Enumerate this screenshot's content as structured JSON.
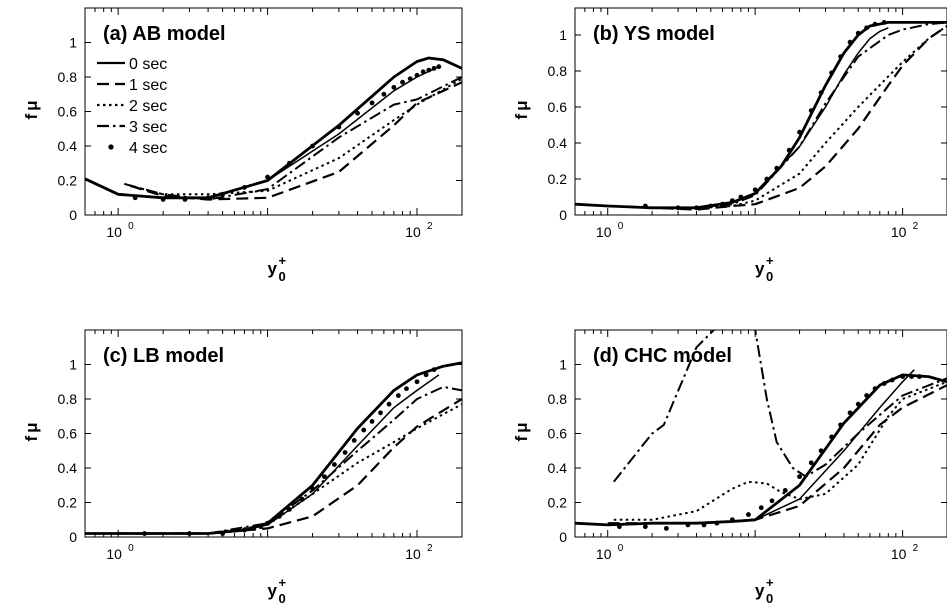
{
  "chart_data": [
    {
      "type": "line",
      "title": "(a) AB model",
      "xlabel": "y",
      "xlabel_sup": "+",
      "xlabel_sub": "0",
      "ylabel": "f",
      "ylabel_sub": "μ",
      "xscale": "log",
      "xlim": [
        0.6,
        200
      ],
      "ylim": [
        0,
        1.2
      ],
      "xticks": [
        1,
        100
      ],
      "xtick_labels": [
        "10",
        "10"
      ],
      "xtick_exps": [
        "0",
        "2"
      ],
      "yticks": [
        0,
        0.2,
        0.4,
        0.6,
        0.8,
        1
      ],
      "ytick_labels": [
        "0",
        "0.2",
        "0.4",
        "0.6",
        "0.8",
        "1"
      ],
      "legend": {
        "placement": "top-left"
      },
      "series": [
        {
          "name": "0 sec",
          "style": "solid-thick",
          "x": [
            0.6,
            1.0,
            2.0,
            4.0,
            10,
            30,
            70,
            100,
            120,
            150,
            200
          ],
          "y": [
            0.21,
            0.12,
            0.1,
            0.1,
            0.2,
            0.52,
            0.8,
            0.89,
            0.91,
            0.9,
            0.85
          ]
        },
        {
          "name": "1 sec",
          "style": "dash",
          "x": [
            1.2,
            2.0,
            4.0,
            10,
            30,
            70,
            100,
            200
          ],
          "y": [
            0.17,
            0.11,
            0.09,
            0.1,
            0.25,
            0.52,
            0.65,
            0.77
          ]
        },
        {
          "name": "2 sec",
          "style": "dot",
          "x": [
            1.2,
            2.0,
            4.0,
            10,
            30,
            70,
            100,
            200
          ],
          "y": [
            0.17,
            0.12,
            0.12,
            0.14,
            0.33,
            0.55,
            0.64,
            0.79
          ]
        },
        {
          "name": "3 sec",
          "style": "dashdot",
          "x": [
            1.1,
            2.0,
            4.0,
            10,
            30,
            70,
            100,
            200
          ],
          "y": [
            0.18,
            0.12,
            0.09,
            0.15,
            0.45,
            0.64,
            0.67,
            0.8
          ]
        },
        {
          "name": "4 sec",
          "style": "marker",
          "x": [
            1.3,
            2.0,
            2.8,
            4.0,
            5.0,
            7.0,
            10,
            14,
            20,
            30,
            40,
            50,
            60,
            70,
            80,
            90,
            100,
            110,
            120,
            130,
            140
          ],
          "y": [
            0.1,
            0.09,
            0.09,
            0.1,
            0.12,
            0.16,
            0.22,
            0.3,
            0.4,
            0.51,
            0.59,
            0.65,
            0.7,
            0.74,
            0.77,
            0.79,
            0.81,
            0.83,
            0.84,
            0.85,
            0.86
          ]
        },
        {
          "name": "",
          "style": "solid",
          "x": [
            10,
            30,
            70,
            100,
            140
          ],
          "y": [
            0.2,
            0.47,
            0.72,
            0.8,
            0.86
          ]
        }
      ]
    },
    {
      "type": "line",
      "title": "(b) YS model",
      "xlabel": "y",
      "xlabel_sup": "+",
      "xlabel_sub": "0",
      "ylabel": "f",
      "ylabel_sub": "μ",
      "xscale": "log",
      "xlim": [
        0.6,
        200
      ],
      "ylim": [
        0,
        1.15
      ],
      "xticks": [
        1,
        100
      ],
      "xtick_labels": [
        "10",
        "10"
      ],
      "xtick_exps": [
        "0",
        "2"
      ],
      "yticks": [
        0,
        0.2,
        0.4,
        0.6,
        0.8,
        1
      ],
      "ytick_labels": [
        "0",
        "0.2",
        "0.4",
        "0.6",
        "0.8",
        "1"
      ],
      "series": [
        {
          "name": "0 sec",
          "style": "solid-thick",
          "x": [
            0.6,
            1.0,
            2.0,
            4.0,
            7.0,
            10,
            15,
            20,
            30,
            40,
            50,
            60,
            80,
            100,
            200
          ],
          "y": [
            0.06,
            0.05,
            0.04,
            0.04,
            0.07,
            0.12,
            0.27,
            0.43,
            0.72,
            0.9,
            1.0,
            1.05,
            1.07,
            1.07,
            1.07
          ]
        },
        {
          "name": "1 sec",
          "style": "dash",
          "x": [
            1.0,
            2.0,
            4.0,
            7.0,
            10,
            20,
            30,
            50,
            80,
            100,
            150,
            200
          ],
          "y": [
            0.05,
            0.04,
            0.03,
            0.05,
            0.06,
            0.15,
            0.27,
            0.48,
            0.72,
            0.83,
            0.98,
            1.05
          ]
        },
        {
          "name": "2 sec",
          "style": "dot",
          "x": [
            1.0,
            2.0,
            4.0,
            7.0,
            10,
            20,
            30,
            50,
            80,
            100,
            150,
            200
          ],
          "y": [
            0.05,
            0.04,
            0.04,
            0.05,
            0.08,
            0.23,
            0.4,
            0.6,
            0.77,
            0.85,
            0.98,
            1.05
          ]
        },
        {
          "name": "3 sec",
          "style": "dashdot",
          "x": [
            1.0,
            2.0,
            4.0,
            7.0,
            10,
            20,
            30,
            50,
            80,
            100,
            150,
            200
          ],
          "y": [
            0.05,
            0.04,
            0.04,
            0.06,
            0.11,
            0.38,
            0.62,
            0.88,
            1.0,
            1.03,
            1.06,
            1.07
          ]
        },
        {
          "name": "4 sec",
          "style": "marker",
          "x": [
            1.8,
            3.0,
            4.0,
            5.0,
            6.0,
            7.0,
            8.0,
            10,
            12,
            14,
            17,
            20,
            24,
            28,
            33,
            38,
            44,
            50,
            57,
            65,
            75
          ],
          "y": [
            0.05,
            0.04,
            0.04,
            0.05,
            0.06,
            0.08,
            0.1,
            0.14,
            0.2,
            0.26,
            0.36,
            0.46,
            0.58,
            0.68,
            0.79,
            0.88,
            0.96,
            1.01,
            1.04,
            1.06,
            1.07
          ]
        },
        {
          "name": "",
          "style": "solid",
          "x": [
            4.0,
            7.0,
            10,
            20,
            30,
            40,
            50,
            60,
            70,
            80
          ],
          "y": [
            0.04,
            0.07,
            0.12,
            0.38,
            0.6,
            0.78,
            0.9,
            0.98,
            1.02,
            1.04
          ]
        }
      ]
    },
    {
      "type": "line",
      "title": "(c) LB model",
      "xlabel": "y",
      "xlabel_sup": "+",
      "xlabel_sub": "0",
      "ylabel": "f",
      "ylabel_sub": "μ",
      "xscale": "log",
      "xlim": [
        0.6,
        200
      ],
      "ylim": [
        0,
        1.2
      ],
      "xticks": [
        1,
        100
      ],
      "xtick_labels": [
        "10",
        "10"
      ],
      "xtick_exps": [
        "0",
        "2"
      ],
      "yticks": [
        0,
        0.2,
        0.4,
        0.6,
        0.8,
        1
      ],
      "ytick_labels": [
        "0",
        "0.2",
        "0.4",
        "0.6",
        "0.8",
        "1"
      ],
      "series": [
        {
          "name": "0 sec",
          "style": "solid-thick",
          "x": [
            0.6,
            1.0,
            2.0,
            4.0,
            7.0,
            10,
            20,
            40,
            70,
            100,
            150,
            200
          ],
          "y": [
            0.02,
            0.02,
            0.02,
            0.02,
            0.04,
            0.08,
            0.3,
            0.63,
            0.85,
            0.94,
            0.99,
            1.01
          ]
        },
        {
          "name": "1 sec",
          "style": "dash",
          "x": [
            1.0,
            4.0,
            10,
            20,
            40,
            70,
            100,
            200
          ],
          "y": [
            0.02,
            0.02,
            0.05,
            0.12,
            0.3,
            0.52,
            0.64,
            0.8
          ]
        },
        {
          "name": "2 sec",
          "style": "dot",
          "x": [
            1.0,
            4.0,
            10,
            20,
            40,
            70,
            100,
            200
          ],
          "y": [
            0.02,
            0.02,
            0.07,
            0.25,
            0.43,
            0.55,
            0.63,
            0.77
          ]
        },
        {
          "name": "3 sec",
          "style": "dashdot",
          "x": [
            1.0,
            4.0,
            10,
            20,
            40,
            70,
            100,
            150,
            200
          ],
          "y": [
            0.02,
            0.02,
            0.08,
            0.27,
            0.5,
            0.68,
            0.8,
            0.87,
            0.85
          ]
        },
        {
          "name": "4 sec",
          "style": "marker",
          "x": [
            1.5,
            3.0,
            5.0,
            7.0,
            8.0,
            9.0,
            10,
            12,
            14,
            17,
            20,
            24,
            28,
            33,
            38,
            44,
            50,
            57,
            65,
            75,
            85,
            100,
            115,
            130
          ],
          "y": [
            0.02,
            0.02,
            0.02,
            0.04,
            0.05,
            0.06,
            0.08,
            0.12,
            0.16,
            0.22,
            0.28,
            0.35,
            0.42,
            0.49,
            0.56,
            0.62,
            0.67,
            0.72,
            0.77,
            0.82,
            0.86,
            0.9,
            0.94,
            0.97
          ]
        },
        {
          "name": "",
          "style": "solid",
          "x": [
            7.0,
            10,
            20,
            40,
            70,
            100,
            140
          ],
          "y": [
            0.04,
            0.07,
            0.25,
            0.53,
            0.75,
            0.85,
            0.94
          ]
        }
      ]
    },
    {
      "type": "line",
      "title": "(d) CHC model",
      "xlabel": "y",
      "xlabel_sup": "+",
      "xlabel_sub": "0",
      "ylabel": "f",
      "ylabel_sub": "μ",
      "xscale": "log",
      "xlim": [
        0.6,
        200
      ],
      "ylim": [
        0,
        1.2
      ],
      "xticks": [
        1,
        100
      ],
      "xtick_labels": [
        "10",
        "10"
      ],
      "xtick_exps": [
        "0",
        "2"
      ],
      "yticks": [
        0,
        0.2,
        0.4,
        0.6,
        0.8,
        1
      ],
      "ytick_labels": [
        "0",
        "0.2",
        "0.4",
        "0.6",
        "0.8",
        "1"
      ],
      "series": [
        {
          "name": "0 sec",
          "style": "solid-thick",
          "x": [
            0.6,
            1.0,
            2.0,
            4.0,
            7.0,
            10,
            20,
            40,
            70,
            100,
            150,
            200
          ],
          "y": [
            0.08,
            0.07,
            0.08,
            0.08,
            0.09,
            0.1,
            0.3,
            0.66,
            0.88,
            0.94,
            0.93,
            0.9
          ]
        },
        {
          "name": "1 sec",
          "style": "dash",
          "x": [
            1.0,
            4.0,
            10,
            20,
            40,
            70,
            100,
            200
          ],
          "y": [
            0.08,
            0.08,
            0.1,
            0.18,
            0.4,
            0.65,
            0.75,
            0.88
          ]
        },
        {
          "name": "2 sec",
          "style": "dot",
          "x": [
            1.1,
            2.0,
            4.0,
            7.0,
            9.0,
            12,
            15,
            20,
            30,
            50,
            80,
            100,
            200
          ],
          "y": [
            0.1,
            0.1,
            0.15,
            0.28,
            0.32,
            0.31,
            0.26,
            0.22,
            0.25,
            0.42,
            0.7,
            0.8,
            0.9
          ]
        },
        {
          "name": "3 sec",
          "style": "dashdot",
          "x": [
            1.1,
            2.0,
            2.4,
            4.0,
            6.0,
            8.0,
            10,
            12,
            14,
            18,
            22,
            30,
            50,
            80,
            100,
            200
          ],
          "y": [
            0.32,
            0.6,
            0.65,
            1.1,
            1.25,
            1.25,
            1.2,
            0.8,
            0.55,
            0.4,
            0.35,
            0.42,
            0.6,
            0.75,
            0.82,
            0.92
          ]
        },
        {
          "name": "4 sec",
          "style": "marker",
          "x": [
            1.2,
            1.8,
            2.5,
            3.5,
            4.5,
            5.5,
            7.0,
            9.0,
            11,
            13,
            16,
            20,
            24,
            28,
            33,
            38,
            44,
            50,
            57,
            65,
            75,
            85,
            100,
            115,
            130
          ],
          "y": [
            0.06,
            0.06,
            0.05,
            0.07,
            0.07,
            0.08,
            0.1,
            0.13,
            0.17,
            0.21,
            0.27,
            0.35,
            0.43,
            0.5,
            0.58,
            0.65,
            0.72,
            0.77,
            0.82,
            0.86,
            0.89,
            0.91,
            0.93,
            0.93,
            0.93
          ]
        },
        {
          "name": "",
          "style": "solid",
          "x": [
            8.0,
            10,
            20,
            40,
            70,
            100,
            120
          ],
          "y": [
            0.09,
            0.1,
            0.22,
            0.5,
            0.75,
            0.9,
            0.97
          ]
        }
      ]
    }
  ]
}
